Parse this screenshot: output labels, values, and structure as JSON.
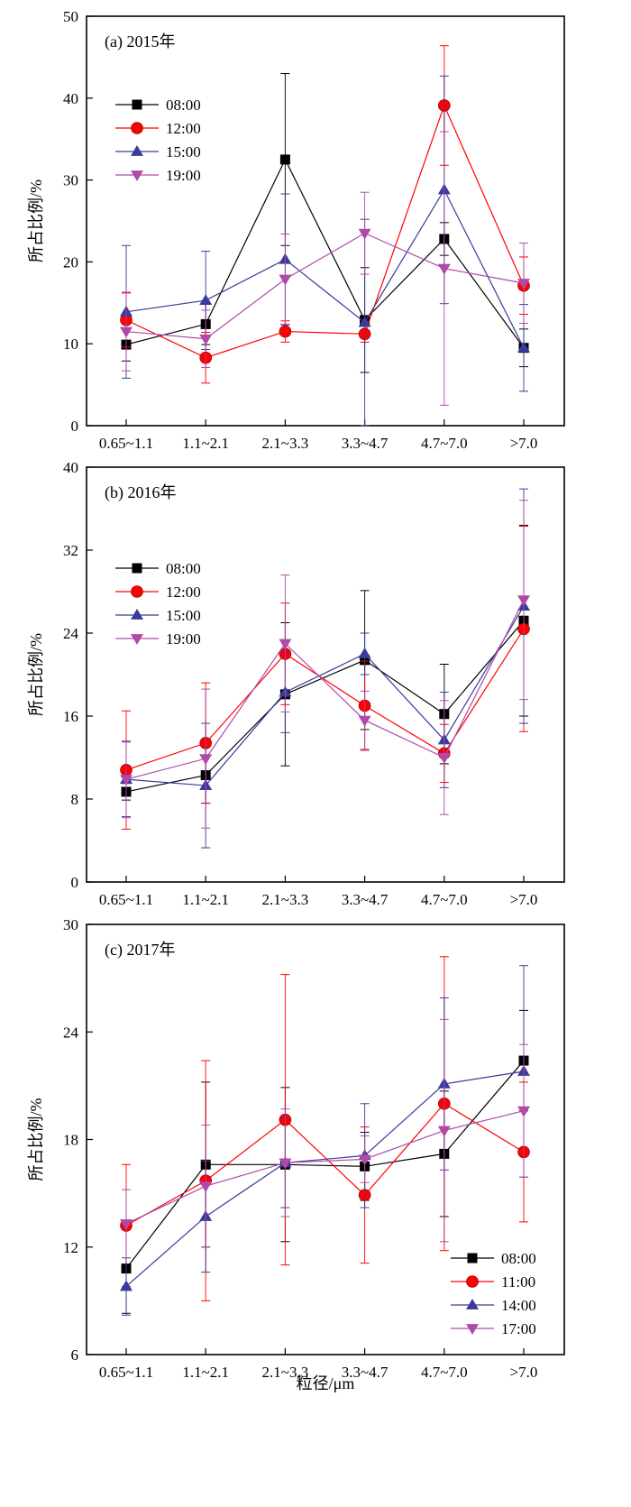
{
  "xlabel": "粒径/μm",
  "chart_data": [
    {
      "type": "line",
      "title": "(a) 2015年",
      "ylabel": "所占比例/%",
      "categories": [
        "0.65~1.1",
        "1.1~2.1",
        "2.1~3.3",
        "3.3~4.7",
        "4.7~7.0",
        ">7.0"
      ],
      "ylim": [
        0,
        50
      ],
      "yticks": [
        0,
        10,
        20,
        30,
        40,
        50
      ],
      "legend_position": "upper-left",
      "series": [
        {
          "name": "08:00",
          "color": "#000000",
          "marker": "square",
          "values": [
            9.9,
            12.4,
            32.5,
            12.9,
            22.8,
            9.5
          ],
          "errors": [
            2.0,
            2.5,
            10.5,
            6.4,
            2.0,
            2.3
          ]
        },
        {
          "name": "12:00",
          "color": "#ff0000",
          "marker": "circle",
          "values": [
            12.9,
            8.3,
            11.5,
            11.2,
            39.1,
            17.1
          ],
          "errors": [
            3.3,
            3.1,
            1.3,
            1.0,
            7.3,
            3.5
          ]
        },
        {
          "name": "15:00",
          "color": "#3a3a9a",
          "marker": "triangle-up",
          "values": [
            13.9,
            15.3,
            20.3,
            12.6,
            28.8,
            9.5
          ],
          "errors": [
            8.1,
            6.0,
            8.0,
            12.6,
            13.9,
            5.3
          ]
        },
        {
          "name": "19:00",
          "color": "#b04aa8",
          "marker": "triangle-down",
          "values": [
            11.5,
            10.6,
            17.9,
            23.5,
            19.2,
            17.4
          ],
          "errors": [
            4.8,
            3.5,
            5.5,
            5.0,
            16.7,
            4.9
          ]
        }
      ]
    },
    {
      "type": "line",
      "title": "(b) 2016年",
      "ylabel": "所占比例/%",
      "categories": [
        "0.65~1.1",
        "1.1~2.1",
        "2.1~3.3",
        "3.3~4.7",
        "4.7~7.0",
        ">7.0"
      ],
      "ylim": [
        0,
        40
      ],
      "yticks": [
        0,
        8,
        16,
        24,
        32,
        40
      ],
      "legend_position": "upper-left",
      "series": [
        {
          "name": "08:00",
          "color": "#000000",
          "marker": "square",
          "values": [
            8.7,
            10.3,
            18.1,
            21.4,
            16.2,
            25.2
          ],
          "errors": [
            0.8,
            2.7,
            6.9,
            6.7,
            4.8,
            9.2
          ]
        },
        {
          "name": "12:00",
          "color": "#ff0000",
          "marker": "circle",
          "values": [
            10.8,
            13.4,
            22.0,
            17.0,
            12.4,
            24.4
          ],
          "errors": [
            5.7,
            5.8,
            4.9,
            4.3,
            2.8,
            9.9
          ]
        },
        {
          "name": "15:00",
          "color": "#3a3a9a",
          "marker": "triangle-up",
          "values": [
            9.9,
            9.3,
            18.3,
            22.0,
            13.7,
            26.6
          ],
          "errors": [
            3.6,
            6.0,
            3.9,
            2.0,
            4.6,
            11.3
          ]
        },
        {
          "name": "19:00",
          "color": "#b04aa8",
          "marker": "triangle-down",
          "values": [
            9.9,
            11.9,
            23.0,
            15.6,
            12.0,
            27.2
          ],
          "errors": [
            3.7,
            6.7,
            6.6,
            2.8,
            5.5,
            9.6
          ]
        }
      ]
    },
    {
      "type": "line",
      "title": "(c) 2017年",
      "ylabel": "所占比例/%",
      "categories": [
        "0.65~1.1",
        "1.1~2.1",
        "2.1~3.3",
        "3.3~4.7",
        "4.7~7.0",
        ">7.0"
      ],
      "ylim": [
        6,
        30
      ],
      "yticks": [
        6,
        12,
        18,
        24,
        30
      ],
      "legend_position": "lower-right",
      "series": [
        {
          "name": "08:00",
          "color": "#000000",
          "marker": "square",
          "values": [
            10.8,
            16.6,
            16.6,
            16.5,
            17.2,
            22.4
          ],
          "errors": [
            2.5,
            4.6,
            4.3,
            1.9,
            3.5,
            2.8
          ]
        },
        {
          "name": "11:00",
          "color": "#ff0000",
          "marker": "circle",
          "values": [
            13.2,
            15.7,
            19.1,
            14.9,
            20.0,
            17.3
          ],
          "errors": [
            3.4,
            6.7,
            8.1,
            3.8,
            8.2,
            3.9
          ]
        },
        {
          "name": "14:00",
          "color": "#3a3a9a",
          "marker": "triangle-up",
          "values": [
            9.8,
            13.7,
            16.7,
            17.1,
            21.1,
            21.8
          ],
          "errors": [
            1.6,
            3.1,
            2.5,
            2.9,
            4.8,
            5.9
          ]
        },
        {
          "name": "17:00",
          "color": "#b04aa8",
          "marker": "triangle-down",
          "values": [
            13.3,
            15.4,
            16.7,
            16.9,
            18.5,
            19.6
          ],
          "errors": [
            1.9,
            3.4,
            3.0,
            1.3,
            6.2,
            3.7
          ]
        }
      ]
    }
  ]
}
